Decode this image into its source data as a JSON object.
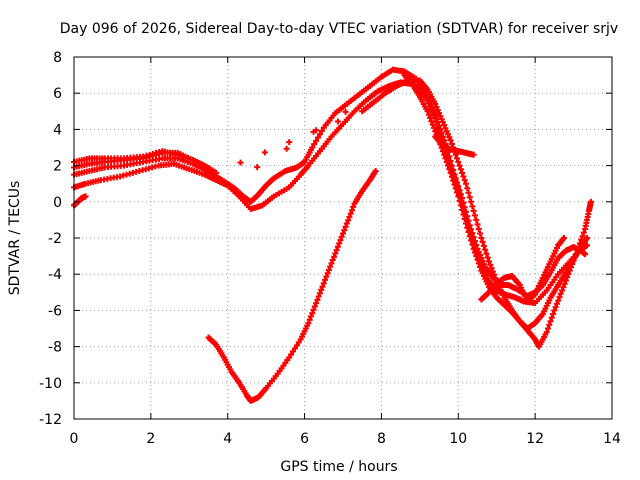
{
  "chart_data": {
    "type": "scatter",
    "title": "Day 096 of 2026, Sidereal Day-to-day VTEC variation (SDTVAR) for receiver srjv",
    "xlabel": "GPS time / hours",
    "ylabel": "SDTVAR / TECUs",
    "xlim": [
      0,
      14
    ],
    "ylim": [
      -12,
      8
    ],
    "xticks": [
      0,
      2,
      4,
      6,
      8,
      10,
      12,
      14
    ],
    "yticks": [
      -12,
      -10,
      -8,
      -6,
      -4,
      -2,
      0,
      2,
      4,
      6,
      8
    ],
    "grid": true,
    "legend": "none",
    "marker": "plus",
    "color": "#ff0000",
    "series": [
      {
        "points": [
          [
            0.0,
            0.8
          ],
          [
            0.3,
            1.0
          ],
          [
            0.7,
            1.2
          ],
          [
            1.2,
            1.4
          ],
          [
            1.7,
            1.7
          ],
          [
            2.2,
            2.0
          ],
          [
            2.6,
            2.1
          ],
          [
            3.0,
            1.8
          ],
          [
            3.4,
            1.5
          ],
          [
            3.7,
            1.2
          ],
          [
            4.0,
            0.9
          ],
          [
            4.3,
            0.3
          ],
          [
            4.6,
            -0.4
          ],
          [
            4.9,
            -0.2
          ],
          [
            5.2,
            0.3
          ],
          [
            5.6,
            0.8
          ],
          [
            5.9,
            1.5
          ],
          [
            6.1,
            2.0
          ],
          [
            6.4,
            2.8
          ],
          [
            6.7,
            3.6
          ],
          [
            7.0,
            4.3
          ],
          [
            7.3,
            5.0
          ],
          [
            7.6,
            5.6
          ],
          [
            7.9,
            6.1
          ],
          [
            8.2,
            6.4
          ],
          [
            8.5,
            6.6
          ],
          [
            8.8,
            6.5
          ],
          [
            9.0,
            6.2
          ],
          [
            9.2,
            5.6
          ],
          [
            9.4,
            4.6
          ],
          [
            9.6,
            3.4
          ],
          [
            9.8,
            2.0
          ],
          [
            10.0,
            0.7
          ],
          [
            10.2,
            -0.8
          ],
          [
            10.4,
            -2.3
          ],
          [
            10.6,
            -3.5
          ],
          [
            10.8,
            -4.4
          ],
          [
            11.0,
            -4.9
          ],
          [
            11.2,
            -5.1
          ],
          [
            11.5,
            -5.3
          ],
          [
            11.7,
            -5.5
          ],
          [
            12.0,
            -5.6
          ],
          [
            12.3,
            -4.9
          ],
          [
            12.6,
            -4.0
          ],
          [
            12.9,
            -3.3
          ],
          [
            13.2,
            -2.6
          ],
          [
            13.35,
            -2.4
          ]
        ]
      },
      {
        "points": [
          [
            0.0,
            1.5
          ],
          [
            0.4,
            1.7
          ],
          [
            0.8,
            1.9
          ],
          [
            1.3,
            2.0
          ],
          [
            1.8,
            2.2
          ],
          [
            2.3,
            2.4
          ],
          [
            2.7,
            2.4
          ],
          [
            3.1,
            2.1
          ],
          [
            3.4,
            1.8
          ],
          [
            3.7,
            1.4
          ],
          [
            4.0,
            1.0
          ],
          [
            4.2,
            0.7
          ],
          [
            4.4,
            0.3
          ],
          [
            4.6,
            0.0
          ],
          [
            4.8,
            0.4
          ],
          [
            5.0,
            0.9
          ],
          [
            5.2,
            1.3
          ],
          [
            5.5,
            1.7
          ],
          [
            5.8,
            1.9
          ],
          [
            6.0,
            2.2
          ],
          [
            6.2,
            3.0
          ],
          [
            6.5,
            4.1
          ],
          [
            6.8,
            4.9
          ],
          [
            7.1,
            5.4
          ],
          [
            7.4,
            5.9
          ],
          [
            7.7,
            6.4
          ],
          [
            8.0,
            6.9
          ],
          [
            8.3,
            7.3
          ],
          [
            8.6,
            7.2
          ],
          [
            8.9,
            6.8
          ],
          [
            9.1,
            6.2
          ],
          [
            9.3,
            5.4
          ],
          [
            9.5,
            4.2
          ],
          [
            9.7,
            3.0
          ],
          [
            9.9,
            1.5
          ],
          [
            10.1,
            0.2
          ],
          [
            10.3,
            -1.3
          ],
          [
            10.5,
            -2.6
          ],
          [
            10.7,
            -3.6
          ],
          [
            10.9,
            -4.2
          ],
          [
            11.1,
            -4.6
          ],
          [
            11.3,
            -4.6
          ],
          [
            11.5,
            -4.8
          ],
          [
            11.8,
            -5.2
          ],
          [
            12.0,
            -5.0
          ],
          [
            12.2,
            -4.6
          ],
          [
            12.4,
            -3.9
          ],
          [
            12.6,
            -3.1
          ],
          [
            12.8,
            -2.7
          ],
          [
            13.0,
            -2.5
          ],
          [
            13.2,
            -2.7
          ],
          [
            13.3,
            -2.9
          ]
        ]
      },
      {
        "points": [
          [
            0.0,
            1.9
          ],
          [
            0.4,
            2.1
          ],
          [
            0.8,
            2.2
          ],
          [
            1.3,
            2.3
          ],
          [
            1.8,
            2.4
          ],
          [
            2.3,
            2.7
          ],
          [
            2.7,
            2.7
          ],
          [
            3.1,
            2.3
          ],
          [
            3.4,
            2.0
          ],
          [
            3.7,
            1.6
          ],
          [
            7.5,
            5.0
          ],
          [
            7.8,
            5.5
          ],
          [
            8.1,
            6.0
          ],
          [
            8.4,
            6.4
          ],
          [
            8.7,
            6.7
          ],
          [
            9.0,
            6.7
          ],
          [
            9.2,
            6.2
          ],
          [
            9.4,
            5.4
          ],
          [
            9.6,
            4.4
          ],
          [
            9.8,
            3.4
          ],
          [
            10.0,
            2.2
          ],
          [
            10.2,
            1.0
          ],
          [
            10.4,
            -0.5
          ],
          [
            10.6,
            -2.0
          ],
          [
            10.8,
            -3.3
          ],
          [
            11.0,
            -4.4
          ],
          [
            11.2,
            -5.3
          ],
          [
            11.4,
            -6.0
          ],
          [
            11.6,
            -6.6
          ],
          [
            11.8,
            -7.1
          ],
          [
            12.0,
            -7.6
          ],
          [
            12.1,
            -8.0
          ],
          [
            12.3,
            -7.2
          ],
          [
            12.5,
            -6.0
          ],
          [
            12.7,
            -4.9
          ],
          [
            12.9,
            -3.8
          ],
          [
            13.1,
            -2.7
          ],
          [
            13.3,
            -1.5
          ],
          [
            13.4,
            -0.5
          ],
          [
            13.45,
            0.0
          ]
        ]
      },
      {
        "points": [
          [
            0.0,
            2.2
          ],
          [
            0.4,
            2.4
          ],
          [
            0.8,
            2.4
          ],
          [
            1.3,
            2.4
          ],
          [
            1.8,
            2.5
          ],
          [
            2.3,
            2.8
          ],
          [
            2.7,
            2.6
          ],
          [
            3.1,
            2.3
          ],
          [
            3.4,
            1.9
          ],
          [
            3.7,
            1.4
          ],
          [
            4.0,
            0.9
          ],
          [
            8.6,
            7.0
          ],
          [
            8.8,
            6.5
          ],
          [
            9.0,
            5.8
          ],
          [
            9.2,
            5.0
          ],
          [
            9.4,
            3.9
          ],
          [
            9.6,
            2.8
          ],
          [
            9.8,
            1.6
          ],
          [
            10.0,
            0.3
          ],
          [
            10.2,
            -1.2
          ],
          [
            10.4,
            -2.6
          ],
          [
            10.6,
            -3.8
          ],
          [
            10.8,
            -4.7
          ],
          [
            11.0,
            -5.3
          ],
          [
            11.2,
            -5.7
          ],
          [
            11.4,
            -6.1
          ],
          [
            11.6,
            -6.6
          ],
          [
            11.8,
            -7.0
          ],
          [
            12.0,
            -6.7
          ],
          [
            12.2,
            -6.2
          ],
          [
            12.4,
            -5.3
          ],
          [
            12.6,
            -4.6
          ],
          [
            12.8,
            -3.9
          ],
          [
            13.0,
            -3.2
          ],
          [
            13.2,
            -2.5
          ],
          [
            13.35,
            -2.0
          ]
        ]
      },
      {
        "points": [
          [
            0.0,
            -0.2
          ],
          [
            0.1,
            0.0
          ],
          [
            0.2,
            0.2
          ],
          [
            0.3,
            0.3
          ]
        ]
      },
      {
        "points": [
          [
            9.4,
            3.6
          ],
          [
            9.6,
            3.1
          ],
          [
            9.8,
            2.9
          ],
          [
            10.0,
            2.8
          ],
          [
            10.2,
            2.7
          ],
          [
            10.4,
            2.6
          ]
        ]
      },
      {
        "points": [
          [
            10.6,
            -5.4
          ],
          [
            10.8,
            -5.0
          ],
          [
            11.0,
            -4.5
          ],
          [
            11.2,
            -4.2
          ],
          [
            11.4,
            -4.1
          ],
          [
            11.6,
            -4.6
          ],
          [
            11.8,
            -5.5
          ],
          [
            12.0,
            -5.1
          ],
          [
            12.2,
            -4.2
          ],
          [
            12.4,
            -3.3
          ],
          [
            12.6,
            -2.4
          ],
          [
            12.75,
            -2.0
          ]
        ]
      },
      {
        "points": [
          [
            3.5,
            -7.5
          ],
          [
            3.7,
            -7.9
          ],
          [
            3.9,
            -8.6
          ],
          [
            4.1,
            -9.4
          ],
          [
            4.3,
            -10.0
          ],
          [
            4.5,
            -10.7
          ],
          [
            4.6,
            -11.0
          ],
          [
            4.8,
            -10.8
          ],
          [
            5.0,
            -10.3
          ],
          [
            5.3,
            -9.5
          ],
          [
            5.6,
            -8.6
          ],
          [
            5.9,
            -7.6
          ],
          [
            6.1,
            -6.7
          ],
          [
            6.3,
            -5.6
          ],
          [
            6.5,
            -4.5
          ],
          [
            6.7,
            -3.4
          ],
          [
            6.9,
            -2.3
          ],
          [
            7.1,
            -1.2
          ],
          [
            7.3,
            -0.1
          ],
          [
            7.5,
            0.6
          ],
          [
            7.7,
            1.2
          ],
          [
            7.85,
            1.7
          ]
        ]
      }
    ]
  }
}
